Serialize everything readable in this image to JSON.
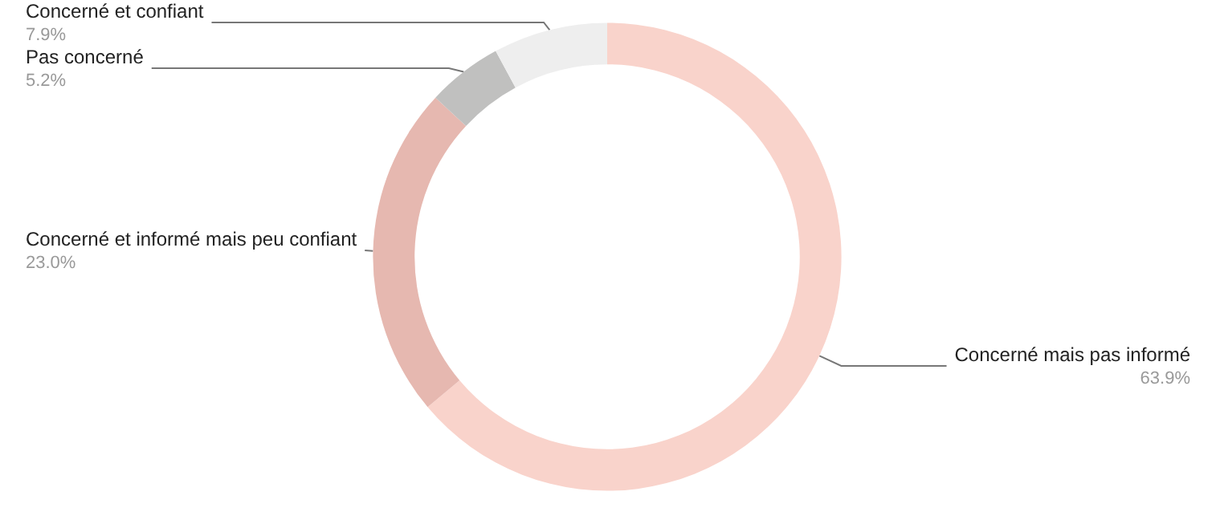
{
  "chart_data": {
    "type": "donut",
    "legend": false,
    "categories": [
      "Concerné mais pas informé",
      "Concerné et informé mais peu confiant",
      "Pas concerné",
      "Concerné et confiant"
    ],
    "values": [
      63.9,
      23.0,
      5.2,
      7.9
    ],
    "value_labels": [
      "63.9%",
      "23.0%",
      "5.2%",
      "7.9%"
    ],
    "colors": [
      "#f9d3cb",
      "#e6b8b0",
      "#c0c0bf",
      "#eeeeee"
    ]
  }
}
